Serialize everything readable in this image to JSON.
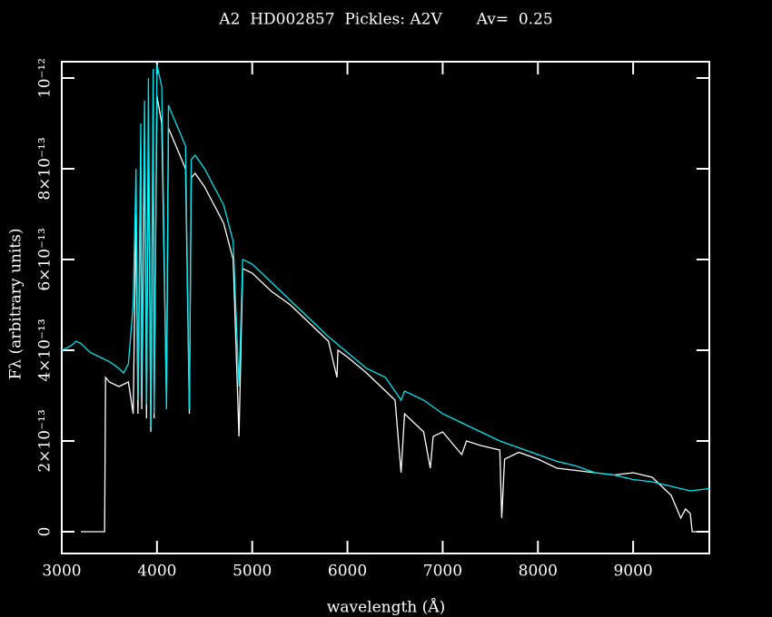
{
  "chart_data": {
    "type": "line",
    "title": "A2  HD002857  Pickles: A2V       Av=  0.25",
    "xlabel": "wavelength (Å)",
    "ylabel": "Fλ (arbitrary units)",
    "xlim": [
      3000,
      9800
    ],
    "ylim": [
      -4.8e-14,
      1.036e-12
    ],
    "xticks": [
      3000,
      4000,
      5000,
      6000,
      7000,
      8000,
      9000
    ],
    "yticks": [
      0,
      {
        "value": 2e-13,
        "label": "2×10⁻¹³"
      },
      {
        "value": 4e-13,
        "label": "4×10⁻¹³"
      },
      {
        "value": 6e-13,
        "label": "6×10⁻¹³"
      },
      {
        "value": 8e-13,
        "label": "8×10⁻¹³"
      },
      {
        "value": 1e-12,
        "label": "10⁻¹²"
      }
    ],
    "series": [
      {
        "color": "#ffffff",
        "x": [
          3200,
          3450,
          3460,
          3500,
          3600,
          3700,
          3750,
          3780,
          3800,
          3830,
          3840,
          3870,
          3890,
          3910,
          3935,
          3960,
          3970,
          4000,
          4050,
          4100,
          4120,
          4200,
          4300,
          4340,
          4360,
          4400,
          4500,
          4600,
          4700,
          4800,
          4861,
          4900,
          5000,
          5200,
          5400,
          5600,
          5800,
          5890,
          5900,
          6000,
          6200,
          6300,
          6400,
          6500,
          6563,
          6600,
          6800,
          6870,
          6900,
          7000,
          7200,
          7250,
          7400,
          7600,
          7620,
          7650,
          7800,
          8000,
          8200,
          8400,
          8600,
          8800,
          9000,
          9200,
          9300,
          9400,
          9500,
          9550,
          9600,
          9620,
          9800
        ],
        "values": [
          0,
          0,
          3.4e-13,
          3.3e-13,
          3.2e-13,
          3.3e-13,
          2.6e-13,
          7e-13,
          2.6e-13,
          8.5e-13,
          2.7e-13,
          8.8e-13,
          2.5e-13,
          9.3e-13,
          2.2e-13,
          9.5e-13,
          2.5e-13,
          9.6e-13,
          9e-13,
          2.8e-13,
          8.9e-13,
          8.5e-13,
          8e-13,
          2.6e-13,
          7.8e-13,
          7.9e-13,
          7.6e-13,
          7.2e-13,
          6.8e-13,
          6e-13,
          2.1e-13,
          5.8e-13,
          5.7e-13,
          5.3e-13,
          5e-13,
          4.6e-13,
          4.2e-13,
          3.4e-13,
          4e-13,
          3.85e-13,
          3.5e-13,
          3.3e-13,
          3.1e-13,
          2.9e-13,
          1.3e-13,
          2.6e-13,
          2.2e-13,
          1.4e-13,
          2.1e-13,
          2.2e-13,
          1.7e-13,
          2e-13,
          1.9e-13,
          1.8e-13,
          3e-14,
          1.6e-13,
          1.75e-13,
          1.6e-13,
          1.4e-13,
          1.35e-13,
          1.3e-13,
          1.25e-13,
          1.3e-13,
          1.2e-13,
          1e-13,
          8e-14,
          3e-14,
          5e-14,
          4e-14,
          0,
          0
        ]
      },
      {
        "color": "#00e5ee",
        "x": [
          3000,
          3100,
          3150,
          3200,
          3300,
          3400,
          3500,
          3600,
          3650,
          3700,
          3750,
          3780,
          3800,
          3830,
          3835,
          3870,
          3890,
          3910,
          3935,
          3960,
          3970,
          4000,
          4050,
          4100,
          4120,
          4200,
          4300,
          4340,
          4360,
          4400,
          4500,
          4600,
          4700,
          4800,
          4861,
          4900,
          5000,
          5200,
          5400,
          5600,
          5800,
          6000,
          6200,
          6400,
          6563,
          6600,
          6800,
          7000,
          7200,
          7400,
          7600,
          7800,
          8000,
          8200,
          8400,
          8600,
          8800,
          9000,
          9200,
          9400,
          9600,
          9800
        ],
        "values": [
          4e-13,
          4.1e-13,
          4.2e-13,
          4.15e-13,
          3.95e-13,
          3.85e-13,
          3.75e-13,
          3.6e-13,
          3.5e-13,
          3.7e-13,
          5e-13,
          8e-13,
          2.9e-13,
          9e-13,
          3e-13,
          9.5e-13,
          2.8e-13,
          1e-12,
          2.3e-13,
          1.02e-12,
          2.6e-13,
          1.03e-12,
          9.8e-13,
          2.7e-13,
          9.4e-13,
          9e-13,
          8.5e-13,
          2.7e-13,
          8.2e-13,
          8.3e-13,
          8e-13,
          7.6e-13,
          7.2e-13,
          6.4e-13,
          3.2e-13,
          6e-13,
          5.9e-13,
          5.5e-13,
          5.1e-13,
          4.7e-13,
          4.3e-13,
          3.95e-13,
          3.6e-13,
          3.4e-13,
          2.9e-13,
          3.1e-13,
          2.9e-13,
          2.6e-13,
          2.4e-13,
          2.2e-13,
          2e-13,
          1.85e-13,
          1.7e-13,
          1.55e-13,
          1.45e-13,
          1.3e-13,
          1.25e-13,
          1.15e-13,
          1.1e-13,
          1e-13,
          9e-14,
          9.5e-14
        ]
      }
    ]
  }
}
